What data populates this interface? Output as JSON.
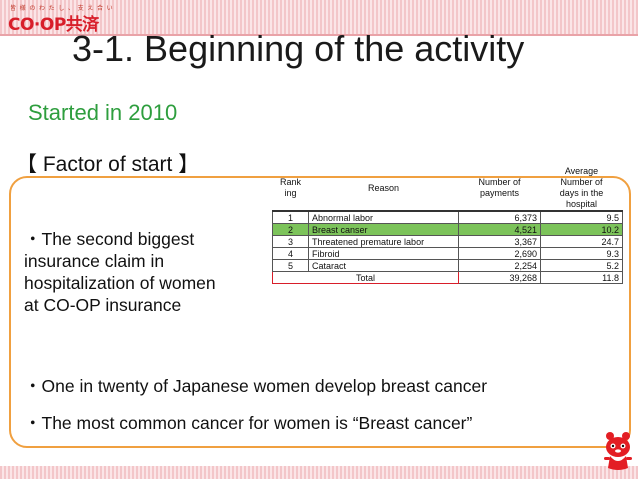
{
  "header": {
    "logo_tagline": "皆 様 の わ た し 、 支 え 合 い",
    "logo_text": "CO·OP共済"
  },
  "slide": {
    "title": "3-1.  Beginning of the activity",
    "subtitle": "Started in 2010",
    "factor_heading": "【 Factor of start 】",
    "claim_lines": [
      "・The second biggest",
      "insurance claim in",
      "hospitalization of women",
      "at CO-OP insurance"
    ],
    "bullet_one_in_twenty": "・One in twenty of Japanese women develop breast cancer",
    "bullet_most_common": "・The most common cancer for women is “Breast cancer”"
  },
  "table": {
    "headers": {
      "rank_line1": "Rank",
      "rank_line2": "ing",
      "reason": "Reason",
      "payments_line1": "Number of",
      "payments_line2": "payments",
      "days_line1": "Average",
      "days_line2": "Number of",
      "days_line3": "days in the",
      "days_line4": "hospital"
    },
    "rows": [
      {
        "rank": "1",
        "reason": "Abnormal labor",
        "payments": "6,373",
        "days": "9.5"
      },
      {
        "rank": "2",
        "reason": "Breast canser",
        "payments": "4,521",
        "days": "10.2"
      },
      {
        "rank": "3",
        "reason": "Threatened premature labor",
        "payments": "3,367",
        "days": "24.7"
      },
      {
        "rank": "4",
        "reason": "Fibroid",
        "payments": "2,690",
        "days": "9.3"
      },
      {
        "rank": "5",
        "reason": "Cataract",
        "payments": "2,254",
        "days": "5.2"
      }
    ],
    "total": {
      "label": "Total",
      "payments": "39,268",
      "days": "11.8"
    }
  },
  "colors": {
    "title_green": "#2e9e3e",
    "brand_red": "#d81e2a",
    "box_border": "#f0a040",
    "highlight_green": "#7cc35a"
  }
}
